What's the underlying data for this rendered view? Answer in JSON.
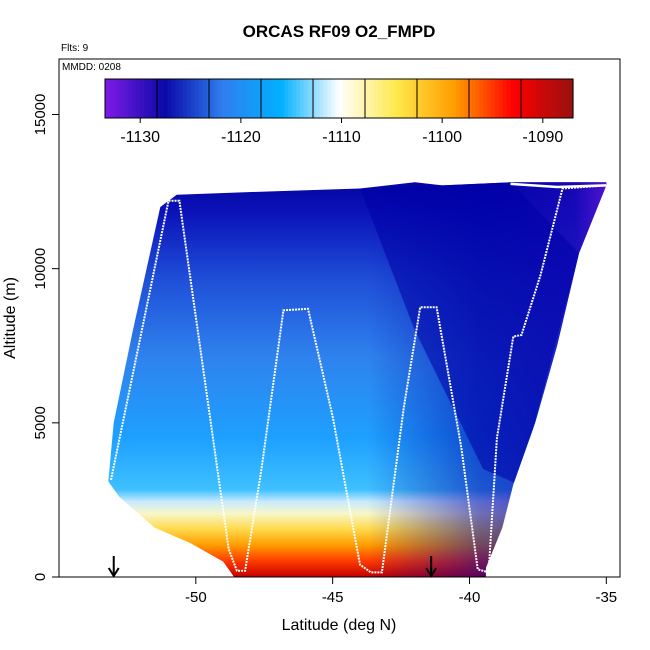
{
  "chart_data": {
    "type": "heatmap",
    "title": "ORCAS RF09 O2_FMPD",
    "subtitle_flts": "Flts: 9",
    "subtitle_mmdd": "MMDD: 0208",
    "xlabel": "Latitude (deg N)",
    "ylabel": "Altitude (m)",
    "xlim": [
      -55,
      -34.5
    ],
    "ylim": [
      0,
      16800
    ],
    "x_ticks": [
      -50,
      -45,
      -40,
      -35
    ],
    "x_tick_labels": [
      "-50",
      "-45",
      "-40",
      "-35"
    ],
    "y_ticks": [
      0,
      5000,
      10000,
      15000
    ],
    "y_tick_labels": [
      "0",
      "5000",
      "10000",
      "15000"
    ],
    "colorbar": {
      "range": [
        -1133.5,
        -1087
      ],
      "ticks": [
        -1130,
        -1120,
        -1110,
        -1100,
        -1090
      ],
      "tick_labels": [
        "-1130",
        "-1120",
        "-1110",
        "-1100",
        "-1090"
      ],
      "colors": [
        "#7b1ae6",
        "#0a0aa8",
        "#2f7ff0",
        "#00b0ff",
        "#ffffff",
        "#ffe84a",
        "#ff9c00",
        "#ff0000",
        "#9b1010"
      ]
    },
    "coverage": {
      "bottom_left": [
        [
          -53.2,
          3100
        ],
        [
          -52.8,
          2600
        ],
        [
          -51.5,
          1600
        ],
        [
          -50.2,
          1100
        ],
        [
          -49.0,
          500
        ],
        [
          -48.6,
          0
        ],
        [
          -39.4,
          0
        ],
        [
          -39.4,
          300
        ],
        [
          -38.8,
          1600
        ],
        [
          -38.4,
          3000
        ],
        [
          -37.6,
          5000
        ],
        [
          -36.8,
          7500
        ],
        [
          -36.0,
          10500
        ],
        [
          -35.0,
          12700
        ]
      ],
      "top": [
        [
          -53.2,
          3100
        ],
        [
          -53.0,
          5000
        ],
        [
          -52.3,
          8000
        ],
        [
          -51.3,
          12000
        ],
        [
          -50.7,
          12400
        ],
        [
          -47.5,
          12500
        ],
        [
          -44.0,
          12600
        ],
        [
          -42.0,
          12800
        ],
        [
          -41.0,
          12700
        ],
        [
          -38.5,
          12800
        ],
        [
          -35.0,
          12800
        ]
      ]
    },
    "flight_track": [
      [
        -53.1,
        3150
      ],
      [
        -51.0,
        12200
      ],
      [
        -50.6,
        12200
      ],
      [
        -48.8,
        900
      ],
      [
        -48.5,
        200
      ],
      [
        -48.2,
        200
      ],
      [
        -47.6,
        3500
      ],
      [
        -46.8,
        8650
      ],
      [
        -45.9,
        8700
      ],
      [
        -45.0,
        5200
      ],
      [
        -44.0,
        400
      ],
      [
        -43.6,
        150
      ],
      [
        -43.2,
        150
      ],
      [
        -42.4,
        5500
      ],
      [
        -41.8,
        8750
      ],
      [
        -41.2,
        8750
      ],
      [
        -40.3,
        4200
      ],
      [
        -39.7,
        250
      ],
      [
        -39.3,
        150
      ],
      [
        -39.0,
        4500
      ],
      [
        -38.4,
        7800
      ],
      [
        -38.1,
        7850
      ],
      [
        -37.4,
        9800
      ],
      [
        -36.6,
        12600
      ],
      [
        -35.0,
        12700
      ]
    ],
    "upper_leg": [
      [
        -38.5,
        12750
      ],
      [
        -36.8,
        12650
      ],
      [
        -35.0,
        12700
      ]
    ],
    "markers": [
      {
        "lat": -53.0,
        "alt": 0,
        "symbol": "arrow-down"
      },
      {
        "lat": -41.4,
        "alt": 0,
        "symbol": "arrow-down"
      }
    ]
  }
}
